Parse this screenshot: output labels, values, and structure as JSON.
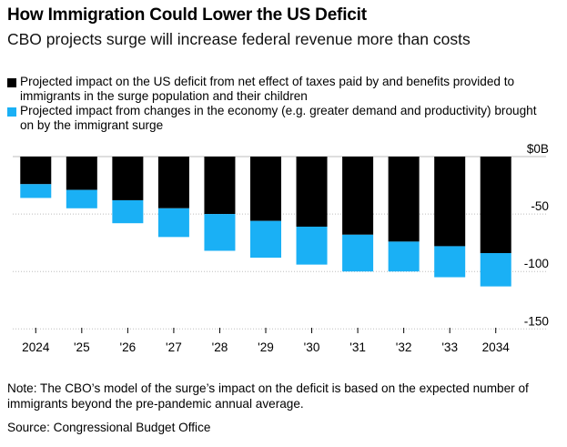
{
  "header": {
    "title": "How Immigration Could Lower the US Deficit",
    "subtitle": "CBO projects surge will increase federal revenue more than costs"
  },
  "legend": [
    {
      "label": "Projected impact on the US deficit from net effect of taxes paid by and benefits provided to immigrants in the surge population and their children",
      "color": "#000000"
    },
    {
      "label": "Projected impact from changes in the economy (e.g. greater demand and productivity) brought on by the immigrant surge",
      "color": "#1ab0f5"
    }
  ],
  "footer": {
    "note": "Note: The CBO’s model of the surge’s impact on the deficit is based on the expected number of immigrants beyond the pre-pandemic annual average.",
    "source": "Source: Congressional Budget Office"
  },
  "chart_data": {
    "type": "bar",
    "stacked": true,
    "categories": [
      "2024",
      "'25",
      "'26",
      "'27",
      "'28",
      "'29",
      "'30",
      "'31",
      "'32",
      "'33",
      "2034"
    ],
    "series": [
      {
        "name": "Projected impact on the US deficit from net effect of taxes paid by and benefits provided to immigrants in the surge population and their children",
        "color": "#000000",
        "values": [
          -24,
          -29,
          -38,
          -45,
          -50,
          -56,
          -61,
          -68,
          -74,
          -78,
          -84
        ]
      },
      {
        "name": "Projected impact from changes in the economy (e.g. greater demand and productivity) brought on by the immigrant surge",
        "color": "#1ab0f5",
        "values": [
          -12,
          -16,
          -20,
          -25,
          -32,
          -32,
          -33,
          -32,
          -26,
          -27,
          -29
        ]
      }
    ],
    "yticks": [
      0,
      -50,
      -100,
      -150
    ],
    "ytick_labels": [
      "$0B",
      "-50",
      "-100",
      "-150"
    ],
    "ylim": [
      -150,
      0
    ],
    "grid": true
  }
}
